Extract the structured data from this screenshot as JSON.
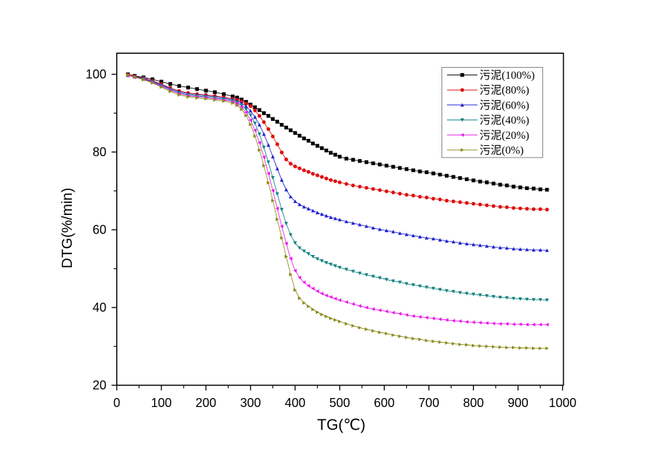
{
  "figure": {
    "background": "#ffffff",
    "frame_color": "#000000",
    "legend_border_color": "#7f7f7f"
  },
  "chart_data": {
    "type": "line",
    "title": "",
    "xlabel": "TG(℃)",
    "ylabel": "DTG(%/min)",
    "xlim": [
      0,
      1000
    ],
    "ylim": [
      20,
      105
    ],
    "x_ticks": [
      0,
      100,
      200,
      300,
      400,
      500,
      600,
      700,
      800,
      900,
      1000
    ],
    "y_ticks": [
      20,
      40,
      60,
      80,
      100
    ],
    "x_minor_step": 50,
    "y_minor_step": 10,
    "grid": false,
    "legend_position": "top-right",
    "x": [
      25,
      40,
      60,
      80,
      100,
      120,
      140,
      160,
      180,
      200,
      220,
      240,
      260,
      270,
      280,
      290,
      300,
      310,
      320,
      330,
      340,
      350,
      360,
      370,
      380,
      390,
      400,
      410,
      420,
      430,
      440,
      450,
      460,
      470,
      480,
      490,
      500,
      515,
      530,
      545,
      560,
      575,
      590,
      605,
      620,
      635,
      650,
      665,
      680,
      695,
      710,
      725,
      740,
      755,
      770,
      785,
      800,
      815,
      830,
      845,
      860,
      875,
      890,
      905,
      920,
      935,
      950,
      965
    ],
    "series": [
      {
        "name": "污泥(100%)",
        "color": "#000000",
        "marker": "square",
        "values": [
          100.0,
          99.6,
          99.2,
          98.7,
          98.1,
          97.5,
          97.0,
          96.6,
          96.2,
          95.8,
          95.4,
          94.9,
          94.3,
          94.0,
          93.5,
          92.9,
          92.2,
          91.5,
          90.8,
          90.0,
          89.3,
          88.5,
          87.8,
          87.0,
          86.3,
          85.6,
          84.9,
          84.2,
          83.5,
          82.9,
          82.2,
          81.6,
          81.0,
          80.4,
          79.8,
          79.3,
          78.8,
          78.3,
          78.0,
          77.7,
          77.4,
          77.1,
          76.8,
          76.5,
          76.2,
          75.9,
          75.6,
          75.3,
          75.0,
          74.8,
          74.5,
          74.2,
          73.9,
          73.6,
          73.3,
          73.0,
          72.7,
          72.4,
          72.2,
          71.9,
          71.6,
          71.4,
          71.1,
          70.9,
          70.7,
          70.6,
          70.4,
          70.3
        ]
      },
      {
        "name": "污泥(80%)",
        "color": "#df1010",
        "marker": "circle",
        "values": [
          99.9,
          99.5,
          99.0,
          98.3,
          97.5,
          96.5,
          95.7,
          95.2,
          94.9,
          94.7,
          94.4,
          94.1,
          93.7,
          93.4,
          93.0,
          92.5,
          91.8,
          90.7,
          89.3,
          87.7,
          85.9,
          84.0,
          82.0,
          79.9,
          78.1,
          77.0,
          76.3,
          75.8,
          75.3,
          74.9,
          74.4,
          74.0,
          73.6,
          73.2,
          72.8,
          72.5,
          72.2,
          71.8,
          71.4,
          71.1,
          70.8,
          70.5,
          70.2,
          69.9,
          69.6,
          69.3,
          69.0,
          68.8,
          68.5,
          68.3,
          68.0,
          67.8,
          67.5,
          67.3,
          67.1,
          66.9,
          66.7,
          66.5,
          66.3,
          66.1,
          65.9,
          65.8,
          65.6,
          65.5,
          65.4,
          65.3,
          65.3,
          65.2
        ]
      },
      {
        "name": "污泥(60%)",
        "color": "#2121cd",
        "marker": "triangle-up",
        "values": [
          99.7,
          99.4,
          98.9,
          98.2,
          97.3,
          96.3,
          95.5,
          95.0,
          94.7,
          94.5,
          94.2,
          93.9,
          93.5,
          93.1,
          92.6,
          91.8,
          90.6,
          89.0,
          87.0,
          84.6,
          81.8,
          78.8,
          75.7,
          72.8,
          70.3,
          68.5,
          67.3,
          66.5,
          65.9,
          65.4,
          64.9,
          64.4,
          64.0,
          63.6,
          63.2,
          62.9,
          62.6,
          62.1,
          61.7,
          61.3,
          60.9,
          60.5,
          60.1,
          59.8,
          59.5,
          59.1,
          58.8,
          58.5,
          58.2,
          57.9,
          57.7,
          57.4,
          57.1,
          56.9,
          56.6,
          56.4,
          56.2,
          56.0,
          55.8,
          55.6,
          55.4,
          55.3,
          55.1,
          55.0,
          54.9,
          54.8,
          54.8,
          54.7
        ]
      },
      {
        "name": "污泥(40%)",
        "color": "#11827f",
        "marker": "triangle-down",
        "values": [
          99.7,
          99.3,
          98.8,
          98.0,
          97.1,
          96.1,
          95.2,
          94.7,
          94.4,
          94.2,
          93.9,
          93.6,
          93.2,
          92.8,
          92.1,
          91.0,
          89.5,
          87.4,
          84.6,
          81.2,
          77.4,
          73.4,
          69.2,
          65.2,
          61.6,
          58.7,
          56.6,
          55.3,
          54.5,
          53.8,
          53.1,
          52.5,
          52.0,
          51.5,
          51.1,
          50.7,
          50.3,
          49.8,
          49.3,
          48.8,
          48.4,
          48.0,
          47.6,
          47.2,
          46.8,
          46.5,
          46.1,
          45.8,
          45.5,
          45.2,
          44.9,
          44.6,
          44.3,
          44.1,
          43.8,
          43.6,
          43.4,
          43.2,
          43.0,
          42.8,
          42.6,
          42.5,
          42.3,
          42.2,
          42.1,
          42.0,
          42.0,
          41.9
        ]
      },
      {
        "name": "污泥(20%)",
        "color": "#ea1cea",
        "marker": "triangle-left",
        "values": [
          99.7,
          99.2,
          98.7,
          97.9,
          96.9,
          95.9,
          95.0,
          94.5,
          94.2,
          94.0,
          93.7,
          93.4,
          93.0,
          92.5,
          91.6,
          90.2,
          88.2,
          85.6,
          82.4,
          78.7,
          74.5,
          70.1,
          65.5,
          60.9,
          56.5,
          52.6,
          49.5,
          47.7,
          46.5,
          45.6,
          44.9,
          44.2,
          43.6,
          43.1,
          42.7,
          42.3,
          41.9,
          41.4,
          40.9,
          40.4,
          40.0,
          39.6,
          39.3,
          39.0,
          38.7,
          38.4,
          38.1,
          37.8,
          37.6,
          37.4,
          37.2,
          37.0,
          36.8,
          36.6,
          36.5,
          36.3,
          36.2,
          36.1,
          36.0,
          35.9,
          35.8,
          35.8,
          35.7,
          35.7,
          35.6,
          35.6,
          35.6,
          35.6
        ]
      },
      {
        "name": "污泥(0%)",
        "color": "#8c8c1c",
        "marker": "triangle-right",
        "values": [
          99.8,
          99.3,
          98.6,
          97.8,
          96.7,
          95.6,
          94.7,
          94.2,
          93.9,
          93.7,
          93.4,
          93.1,
          92.6,
          92.0,
          91.0,
          89.4,
          87.1,
          84.1,
          80.5,
          76.5,
          72.1,
          67.5,
          62.7,
          57.9,
          53.1,
          48.5,
          44.5,
          42.4,
          41.2,
          40.3,
          39.5,
          38.8,
          38.2,
          37.7,
          37.2,
          36.8,
          36.4,
          35.8,
          35.3,
          34.8,
          34.4,
          34.0,
          33.6,
          33.3,
          32.9,
          32.6,
          32.3,
          32.0,
          31.8,
          31.5,
          31.3,
          31.1,
          30.9,
          30.7,
          30.5,
          30.4,
          30.2,
          30.1,
          30.0,
          29.9,
          29.8,
          29.7,
          29.7,
          29.6,
          29.6,
          29.5,
          29.5,
          29.5
        ]
      }
    ]
  }
}
